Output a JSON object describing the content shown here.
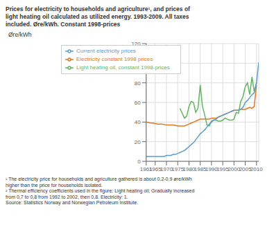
{
  "chart_data": {
    "type": "line",
    "title": "Prices for electricity to households and agriculture¹, and prices of\nlight heating oil calculated as utilized energy. 1993-2009. All taxes\nincluded. Øre/kWh. Constant 1998-prices",
    "ylabel": "Øre/kWh",
    "annotations": [
      "¹ The electricity price for households and agriculture gathered is about 0.2-0.9 øre/kWh",
      "higher than the price for households isolated.",
      "² Thermal efficiency coefficients used in the figure: Light heating oil; Gradually increased",
      "from 0,7 to 0,8 from 1992 to 2002, then 0,8. Electricity: 1.",
      "Source: Statistics Norway and Norwegian Petroleum Institute."
    ],
    "xlim": [
      1961,
      2011
    ],
    "xticks": [
      1961,
      1965,
      1970,
      1975,
      1980,
      1985,
      1990,
      1995,
      2000,
      2005,
      2010
    ],
    "ylim": [
      0,
      120
    ],
    "yticks": [
      0,
      20,
      40,
      60,
      80,
      100,
      120
    ],
    "grid": true,
    "legend": "upper left",
    "x": [
      1961,
      1962,
      1963,
      1964,
      1965,
      1966,
      1967,
      1968,
      1969,
      1970,
      1971,
      1972,
      1973,
      1974,
      1975,
      1976,
      1977,
      1978,
      1979,
      1980,
      1981,
      1982,
      1983,
      1984,
      1985,
      1986,
      1987,
      1988,
      1989,
      1990,
      1991,
      1992,
      1993,
      1994,
      1995,
      1996,
      1997,
      1998,
      1999,
      2000,
      2001,
      2002,
      2003,
      2004,
      2005,
      2006,
      2007,
      2008,
      2009,
      2010,
      2011
    ],
    "series": [
      {
        "name": "Electricity constant 1998 prices",
        "color": "#E8761A",
        "values": [
          40,
          39.5,
          39,
          39,
          38.5,
          38,
          38,
          38,
          37.5,
          37,
          37,
          37,
          37,
          36.5,
          36,
          36,
          36,
          36,
          37,
          38,
          39,
          40,
          41,
          42,
          43,
          43,
          43,
          43,
          43,
          44,
          44,
          44,
          45,
          46,
          47,
          48,
          49,
          50,
          51,
          52,
          52,
          52,
          53,
          53,
          53,
          54,
          55,
          54,
          56,
          78,
          null
        ]
      },
      {
        "name": "Light heating oil, constant 1998-prices",
        "color": "#5DB85C",
        "values": [
          null,
          null,
          null,
          null,
          null,
          null,
          null,
          null,
          null,
          null,
          null,
          null,
          null,
          null,
          null,
          54,
          49,
          44,
          46,
          56,
          61,
          60,
          50,
          54,
          78,
          56,
          47,
          37,
          36,
          41,
          42,
          42,
          41,
          41,
          42,
          44,
          43,
          42,
          42,
          43,
          50,
          49,
          61,
          66,
          76,
          80,
          68,
          86,
          71,
          80,
          null
        ]
      },
      {
        "name": "Current electricity prices",
        "color": "#5B9BD5",
        "values": [
          5,
          5,
          5,
          5,
          5,
          5,
          5,
          5,
          5,
          6,
          6,
          6,
          7,
          7,
          8,
          9,
          10,
          11,
          13,
          15,
          17,
          19,
          22,
          25,
          28,
          30,
          32,
          35,
          38,
          40,
          42,
          43,
          45,
          46,
          47,
          48,
          49,
          50,
          51,
          52,
          52,
          52,
          53,
          55,
          60,
          62,
          65,
          68,
          70,
          80,
          101
        ]
      }
    ]
  }
}
